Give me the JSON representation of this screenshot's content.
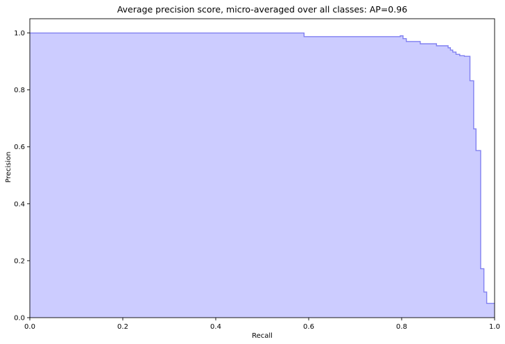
{
  "chart_data": {
    "type": "area",
    "title": "Average precision score, micro-averaged over all classes: AP=0.96",
    "xlabel": "Recall",
    "ylabel": "Precision",
    "xlim": [
      0.0,
      1.0
    ],
    "ylim": [
      0.0,
      1.05
    ],
    "xticks": [
      "0.0",
      "0.2",
      "0.4",
      "0.6",
      "0.8",
      "1.0"
    ],
    "yticks": [
      "0.0",
      "0.2",
      "0.4",
      "0.6",
      "0.8",
      "1.0"
    ],
    "grid": false,
    "legend": "none",
    "fill_color": "#ccccff",
    "line_color": "#8080f0",
    "series": [
      {
        "step": "post",
        "recall": [
          0.0,
          0.59,
          0.797,
          0.803,
          0.81,
          0.84,
          0.875,
          0.9,
          0.905,
          0.91,
          0.917,
          0.925,
          0.935,
          0.947,
          0.955,
          0.96,
          0.97,
          0.977,
          0.983,
          0.99,
          1.0
        ],
        "precision": [
          1.0,
          0.987,
          0.99,
          0.98,
          0.97,
          0.962,
          0.955,
          0.948,
          0.94,
          0.933,
          0.925,
          0.92,
          0.918,
          0.832,
          0.663,
          0.587,
          0.172,
          0.09,
          0.05,
          0.05,
          0.05
        ]
      }
    ]
  }
}
